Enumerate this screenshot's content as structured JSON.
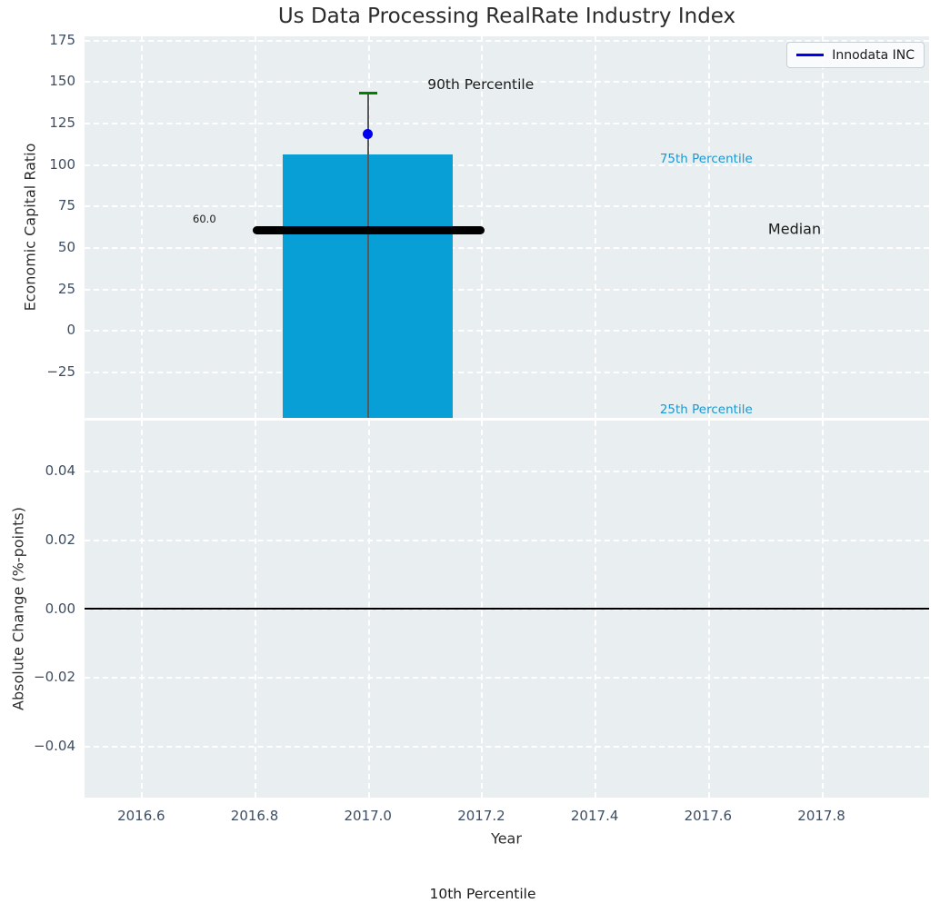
{
  "chart_data": [
    {
      "id": "top",
      "type": "bar",
      "title": "Us Data Processing RealRate Industry Index",
      "ylabel": "Economic Capital Ratio",
      "xlim": [
        2016.5,
        2017.99
      ],
      "ylim": [
        -53,
        177
      ],
      "grid": true,
      "legend_position": "upper right",
      "xticks": [
        2016.6,
        2016.8,
        2017.0,
        2017.2,
        2017.4,
        2017.6,
        2017.8
      ],
      "ytick_values": [
        175,
        150,
        125,
        100,
        75,
        50,
        25,
        0,
        -25
      ],
      "ytick_labels": [
        "175",
        "150",
        "125",
        "100",
        "75",
        "50",
        "25",
        "0",
        "−25"
      ],
      "series": {
        "bar": {
          "x": 2017.0,
          "width": 0.3,
          "p75_top": 106,
          "bottom_clipped_below_axis": true,
          "color": "#089ed6"
        },
        "whisker": {
          "x": 2017.0,
          "p90_high": 143,
          "cap_halfwidth": 0.016,
          "line_color": "#58595b",
          "cap_color": "#008000"
        },
        "median": {
          "value": 60.0,
          "x_start": 2016.797,
          "x_end": 2017.206,
          "color": "#000000"
        },
        "company_point": {
          "name": "Innodata INC",
          "x": 2017.0,
          "y": 118,
          "color": "#0000ee"
        }
      },
      "legend": {
        "label": "Innodata INC",
        "line_color": "#0000ee"
      },
      "annotations": [
        {
          "id": "median-value",
          "text": "60.0",
          "x": 2016.732,
          "y": 67,
          "anchor": "right",
          "color": "#1a1a1a",
          "size": 11.5
        },
        {
          "id": "p90",
          "text": "90th Percentile",
          "x": 2017.105,
          "y": 148,
          "anchor": "left",
          "color": "#1a1a1a",
          "size": 15.5
        },
        {
          "id": "p75",
          "text": "75th Percentile",
          "x": 2017.515,
          "y": 103,
          "anchor": "left",
          "color": "#1899d1",
          "size": 13.5
        },
        {
          "id": "median",
          "text": "Median",
          "x": 2017.706,
          "y": 61,
          "anchor": "left",
          "color": "#1a1a1a",
          "size": 16
        },
        {
          "id": "p25",
          "text": "25th Percentile",
          "x": 2017.515,
          "y": -48,
          "anchor": "left",
          "color": "#1899d1",
          "size": 13.5
        }
      ]
    },
    {
      "id": "bottom",
      "type": "line",
      "ylabel": "Absolute Change (%-points)",
      "xlabel": "Year",
      "xlim": [
        2016.5,
        2017.99
      ],
      "ylim": [
        -0.055,
        0.0545
      ],
      "grid": true,
      "xticks": [
        2016.6,
        2016.8,
        2017.0,
        2017.2,
        2017.4,
        2017.6,
        2017.8
      ],
      "xtick_labels": [
        "2016.6",
        "2016.8",
        "2017.0",
        "2017.2",
        "2017.4",
        "2017.6",
        "2017.8"
      ],
      "ytick_values": [
        0.04,
        0.02,
        0.0,
        -0.02,
        -0.04
      ],
      "ytick_labels": [
        "0.04",
        "0.02",
        "0.00",
        "−0.02",
        "−0.04"
      ],
      "zero_line": {
        "y": 0.0,
        "color": "#000000"
      },
      "series": []
    }
  ],
  "footer_annotation": {
    "text": "10th Percentile"
  },
  "colors": {
    "axes_background": "#e9eef0",
    "gridline": "#ffffff",
    "tick_label": "#3d4d63",
    "bar": "#089ed6",
    "percentile_text": "#1899d1",
    "company_blue": "#0000ee",
    "whisker_gray": "#58595b",
    "cap_green": "#008000"
  }
}
